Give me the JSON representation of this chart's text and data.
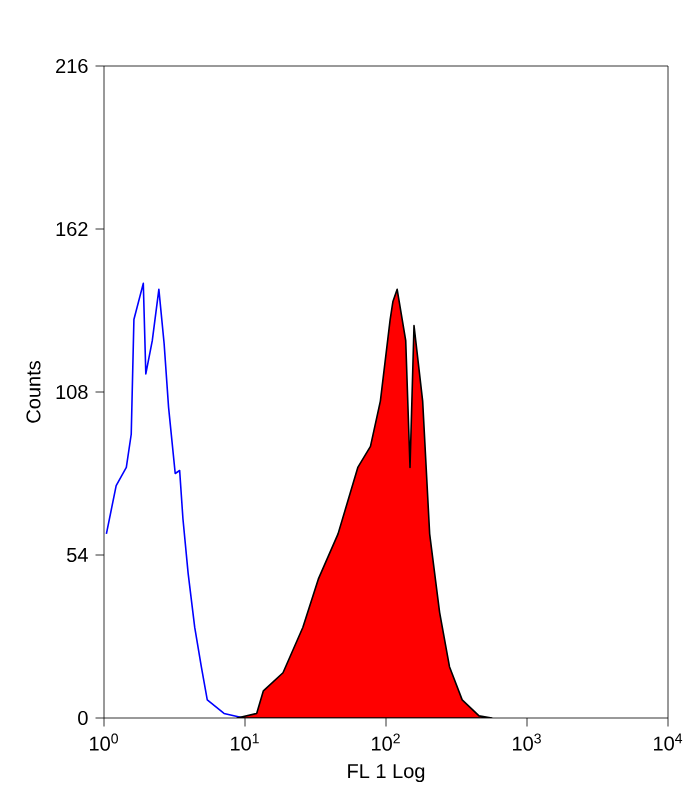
{
  "chart_data": {
    "type": "line",
    "xlabel": "FL 1 Log",
    "ylabel": "Counts",
    "log": "x",
    "xlim": [
      1,
      10000
    ],
    "ylim": [
      0,
      216
    ],
    "xticks": [
      {
        "value": 1,
        "label": "10$^{0}$"
      },
      {
        "value": 10,
        "label": "10$^{1}$"
      },
      {
        "value": 100,
        "label": "10$^{2}$"
      },
      {
        "value": 1000,
        "label": "10$^{3}$"
      },
      {
        "value": 10000,
        "label": "10$^{4}$"
      }
    ],
    "yticks": [
      0,
      54,
      108,
      162,
      216
    ],
    "series": [
      {
        "color": "#0000ff",
        "x": [
          1.04,
          1.22,
          1.44,
          1.56,
          1.63,
          1.9,
          1.98,
          2.2,
          2.45,
          2.67,
          2.87,
          3.2,
          3.44,
          3.63,
          3.95,
          4.4,
          4.9,
          5.4,
          7.1,
          9.8
        ],
        "values": [
          61,
          77,
          83,
          94,
          132,
          144,
          114,
          125,
          142,
          124,
          103,
          81,
          82,
          66,
          48,
          30,
          17,
          6,
          1.5,
          0
        ]
      },
      {
        "type": "area",
        "color": "#ff0000",
        "x": [
          8.8,
          12.1,
          13.5,
          18.6,
          25.7,
          33.1,
          45.7,
          63.1,
          77.6,
          91.2,
          107,
          112,
          120,
          138,
          148,
          158,
          182,
          204,
          240,
          282,
          347,
          457,
          562
        ],
        "values": [
          0,
          1.5,
          9,
          15,
          30,
          46,
          61,
          83,
          90,
          105,
          132,
          138,
          142,
          125,
          83,
          130,
          105,
          61,
          35,
          17,
          6,
          0.7,
          0
        ]
      }
    ]
  }
}
